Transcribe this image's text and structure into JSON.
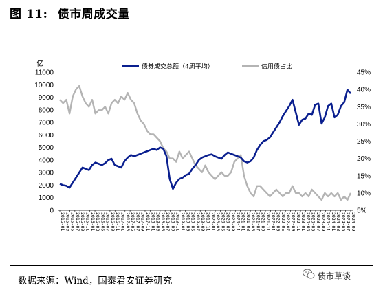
{
  "figure": {
    "label": "图 11:",
    "title": "债市周成交量",
    "source": "数据来源：Wind，国泰君安证券研究",
    "watermark": "债市草谈"
  },
  "chart_data": {
    "type": "line",
    "ylabel_left": "亿",
    "y_left_ticks": [
      "0",
      "1000",
      "2000",
      "3000",
      "4000",
      "5000",
      "6000",
      "7000",
      "8000",
      "9000",
      "10000",
      "11000"
    ],
    "ylim_left": [
      0,
      11000
    ],
    "y_right_ticks": [
      "5%",
      "10%",
      "15%",
      "20%",
      "25%",
      "30%",
      "35%",
      "40%",
      "45%"
    ],
    "ylim_right": [
      0.05,
      0.45
    ],
    "x_ticks": [
      "2015-01",
      "2015-03",
      "2015-05",
      "2015-07",
      "2015-09",
      "2015-11",
      "2016-01",
      "2016-03",
      "2016-05",
      "2016-07",
      "2016-09",
      "2016-11",
      "2017-01",
      "2017-03",
      "2017-05",
      "2017-07",
      "2017-09",
      "2017-11",
      "2018-01",
      "2018-03",
      "2018-05",
      "2018-07",
      "2018-09",
      "2018-11",
      "2019-01",
      "2019-03",
      "2019-05",
      "2019-07",
      "2019-09",
      "2019-11",
      "2020-01",
      "2020-03",
      "2020-05",
      "2020-07",
      "2020-09",
      "2020-11",
      "2021-01",
      "2021-03",
      "2021-05",
      "2021-07",
      "2021-09",
      "2021-11",
      "2022-01",
      "2022-03",
      "2022-05",
      "2022-07",
      "2022-09",
      "2022-11",
      "2023-01",
      "2023-03",
      "2023-05",
      "2023-07",
      "2023-09",
      "2023-11",
      "2024-01",
      "2024-03",
      "2024-05",
      "2024-07",
      "2024-09"
    ],
    "legend_position": "top",
    "grid": false,
    "series": [
      {
        "name": "债券成交总额（4周平均）",
        "axis": "left",
        "color": "#0a1f8f",
        "values": [
          2100,
          2000,
          1950,
          1800,
          2200,
          2600,
          3000,
          3400,
          3300,
          3200,
          3600,
          3800,
          3700,
          3600,
          3750,
          4000,
          4100,
          3600,
          3500,
          3400,
          3900,
          4200,
          4400,
          4300,
          4400,
          4500,
          4600,
          4700,
          4800,
          4900,
          4800,
          5000,
          4900,
          4300,
          2500,
          1700,
          2200,
          2500,
          2600,
          2800,
          2900,
          3300,
          3600,
          4000,
          4200,
          4300,
          4400,
          4450,
          4300,
          4200,
          4100,
          4400,
          4600,
          4500,
          4400,
          4300,
          4200,
          3900,
          3800,
          3900,
          4200,
          4800,
          5200,
          5500,
          5600,
          5800,
          6200,
          6600,
          7000,
          7500,
          7900,
          8300,
          8800,
          7800,
          6800,
          7200,
          7300,
          7700,
          7600,
          8400,
          8500,
          6900,
          7400,
          8300,
          8500,
          7400,
          7600,
          8300,
          8600,
          9600,
          9300
        ]
      },
      {
        "name": "信用债占比",
        "axis": "right",
        "color": "#b4b4b4",
        "values": [
          0.37,
          0.36,
          0.37,
          0.33,
          0.38,
          0.4,
          0.41,
          0.38,
          0.36,
          0.35,
          0.37,
          0.33,
          0.34,
          0.34,
          0.35,
          0.33,
          0.36,
          0.37,
          0.36,
          0.38,
          0.37,
          0.39,
          0.37,
          0.36,
          0.33,
          0.31,
          0.3,
          0.28,
          0.27,
          0.27,
          0.26,
          0.25,
          0.23,
          0.22,
          0.2,
          0.2,
          0.19,
          0.22,
          0.2,
          0.21,
          0.22,
          0.2,
          0.18,
          0.17,
          0.16,
          0.18,
          0.16,
          0.15,
          0.14,
          0.15,
          0.16,
          0.15,
          0.15,
          0.16,
          0.19,
          0.2,
          0.21,
          0.15,
          0.12,
          0.1,
          0.09,
          0.12,
          0.12,
          0.11,
          0.1,
          0.09,
          0.1,
          0.11,
          0.1,
          0.09,
          0.1,
          0.1,
          0.12,
          0.1,
          0.1,
          0.09,
          0.1,
          0.09,
          0.11,
          0.1,
          0.09,
          0.08,
          0.1,
          0.09,
          0.1,
          0.09,
          0.1,
          0.08,
          0.09,
          0.08,
          0.1
        ]
      }
    ]
  }
}
